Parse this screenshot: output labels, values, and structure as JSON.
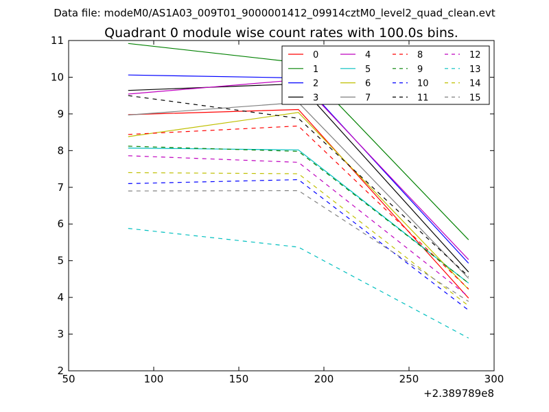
{
  "chart_data": {
    "type": "line",
    "suptitle": "Data file: modeM0/AS1A03_009T01_9000001412_09914cztM0_level2_quad_clean.evt",
    "title": "Quadrant 0 module wise count rates with 100.0s bins.",
    "xlabel": "",
    "ylabel": "",
    "x_offset_label": "+2.389789e8",
    "xlim": [
      50,
      300
    ],
    "ylim": [
      2,
      11
    ],
    "xticks": [
      50,
      100,
      150,
      200,
      250,
      300
    ],
    "yticks": [
      2,
      3,
      4,
      5,
      6,
      7,
      8,
      9,
      10,
      11
    ],
    "x": [
      85,
      185,
      285
    ],
    "legend_position": "upper-right",
    "legend_columns": 4,
    "series": [
      {
        "name": "0",
        "color": "#ff0000",
        "style": "solid",
        "values": [
          8.98,
          9.12,
          3.98
        ]
      },
      {
        "name": "1",
        "color": "#008000",
        "style": "solid",
        "values": [
          10.92,
          10.4,
          5.57
        ]
      },
      {
        "name": "2",
        "color": "#0000ff",
        "style": "solid",
        "values": [
          10.06,
          9.98,
          4.93
        ]
      },
      {
        "name": "3",
        "color": "#000000",
        "style": "solid",
        "values": [
          9.64,
          9.82,
          4.69
        ]
      },
      {
        "name": "4",
        "color": "#bf00bf",
        "style": "solid",
        "values": [
          9.54,
          9.93,
          5.03
        ]
      },
      {
        "name": "5",
        "color": "#00bfbf",
        "style": "solid",
        "values": [
          8.07,
          8.02,
          4.39
        ]
      },
      {
        "name": "6",
        "color": "#bfbf00",
        "style": "solid",
        "values": [
          8.38,
          9.04,
          4.22
        ]
      },
      {
        "name": "7",
        "color": "#808080",
        "style": "solid",
        "values": [
          8.97,
          9.31,
          4.52
        ]
      },
      {
        "name": "8",
        "color": "#ff0000",
        "style": "dashed",
        "values": [
          8.44,
          8.67,
          4.23
        ]
      },
      {
        "name": "9",
        "color": "#008000",
        "style": "dashed",
        "values": [
          8.12,
          7.98,
          4.39
        ]
      },
      {
        "name": "10",
        "color": "#0000ff",
        "style": "dashed",
        "values": [
          7.1,
          7.21,
          3.65
        ]
      },
      {
        "name": "11",
        "color": "#000000",
        "style": "dashed",
        "values": [
          9.5,
          8.88,
          4.57
        ]
      },
      {
        "name": "12",
        "color": "#bf00bf",
        "style": "dashed",
        "values": [
          7.86,
          7.68,
          4.02
        ]
      },
      {
        "name": "13",
        "color": "#00bfbf",
        "style": "dashed",
        "values": [
          5.88,
          5.37,
          2.89
        ]
      },
      {
        "name": "14",
        "color": "#bfbf00",
        "style": "dashed",
        "values": [
          7.4,
          7.37,
          3.77
        ]
      },
      {
        "name": "15",
        "color": "#808080",
        "style": "dashed",
        "values": [
          6.9,
          6.91,
          3.89
        ]
      }
    ]
  }
}
